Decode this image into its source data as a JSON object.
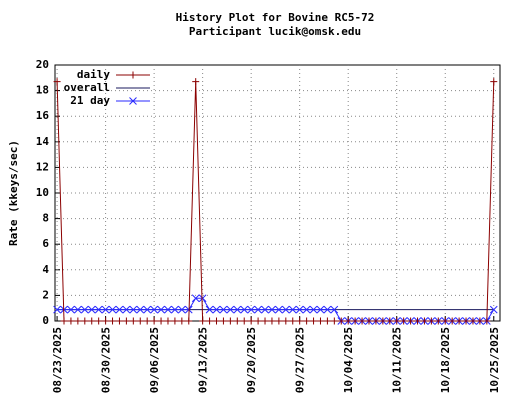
{
  "chart_data": {
    "type": "line",
    "title": "History Plot for Bovine RC5-72",
    "subtitle": "Participant lucik@omsk.edu",
    "y_label": "Rate (kkeys/sec)",
    "x": [
      0,
      1,
      2,
      3,
      4,
      5,
      6,
      7,
      8,
      9,
      10,
      11,
      12,
      13,
      14,
      15,
      16,
      17,
      18,
      19,
      20,
      21,
      22,
      23,
      24,
      25,
      26,
      27,
      28,
      29,
      30,
      31,
      32,
      33,
      34,
      35,
      36,
      37,
      38,
      39,
      40,
      41,
      42,
      43,
      44,
      45,
      46,
      47,
      48,
      49,
      50,
      51,
      52,
      53,
      54,
      55,
      56,
      57,
      58,
      59,
      60,
      61,
      62,
      63
    ],
    "series": [
      {
        "name": "daily",
        "color": "#8b0000",
        "marker": "+",
        "values": [
          18.7,
          0,
          0,
          0,
          0,
          0,
          0,
          0,
          0,
          0,
          0,
          0,
          0,
          0,
          0,
          0,
          0,
          0,
          0,
          0,
          18.7,
          0,
          0,
          0,
          0,
          0,
          0,
          0,
          0,
          0,
          0,
          0,
          0,
          0,
          0,
          0,
          0,
          0,
          0,
          0,
          0,
          0,
          0,
          0,
          0,
          0,
          0,
          0,
          0,
          0,
          0,
          0,
          0,
          0,
          0,
          0,
          0,
          0,
          0,
          0,
          0,
          0,
          0,
          18.7
        ]
      },
      {
        "name": "overall",
        "color": "#1a1a5e",
        "marker": "none",
        "values": [
          0.89,
          0.89,
          0.89,
          0.89,
          0.89,
          0.89,
          0.89,
          0.89,
          0.89,
          0.89,
          0.89,
          0.89,
          0.89,
          0.89,
          0.89,
          0.89,
          0.89,
          0.89,
          0.89,
          0.89,
          0.89,
          0.89,
          0.89,
          0.89,
          0.89,
          0.89,
          0.89,
          0.89,
          0.89,
          0.89,
          0.89,
          0.89,
          0.89,
          0.89,
          0.89,
          0.89,
          0.89,
          0.89,
          0.89,
          0.89,
          0.89,
          0.89,
          0.89,
          0.89,
          0.89,
          0.89,
          0.89,
          0.89,
          0.89,
          0.89,
          0.89,
          0.89,
          0.89,
          0.89,
          0.89,
          0.89,
          0.89,
          0.89,
          0.89,
          0.89,
          0.89,
          0.89,
          0.89,
          0.89
        ]
      },
      {
        "name": "21 day",
        "color": "#2a2aff",
        "marker": "x",
        "values": [
          0.89,
          0.89,
          0.89,
          0.89,
          0.89,
          0.89,
          0.89,
          0.89,
          0.89,
          0.89,
          0.89,
          0.89,
          0.89,
          0.89,
          0.89,
          0.89,
          0.89,
          0.89,
          0.89,
          0.89,
          1.78,
          1.78,
          0.89,
          0.89,
          0.89,
          0.89,
          0.89,
          0.89,
          0.89,
          0.89,
          0.89,
          0.89,
          0.89,
          0.89,
          0.89,
          0.89,
          0.89,
          0.89,
          0.89,
          0.89,
          0.89,
          0,
          0,
          0,
          0,
          0,
          0,
          0,
          0,
          0,
          0,
          0,
          0,
          0,
          0,
          0,
          0,
          0,
          0,
          0,
          0,
          0,
          0,
          0.89
        ]
      }
    ],
    "xlim": [
      -0.3,
      63.9
    ],
    "xticks": [
      {
        "value": 0,
        "label": "08/23/2025"
      },
      {
        "value": 7,
        "label": "08/30/2025"
      },
      {
        "value": 14,
        "label": "09/06/2025"
      },
      {
        "value": 21,
        "label": "09/13/2025"
      },
      {
        "value": 28,
        "label": "09/20/2025"
      },
      {
        "value": 35,
        "label": "09/27/2025"
      },
      {
        "value": 42,
        "label": "10/04/2025"
      },
      {
        "value": 49,
        "label": "10/11/2025"
      },
      {
        "value": 56,
        "label": "10/18/2025"
      },
      {
        "value": 63,
        "label": "10/25/2025"
      }
    ],
    "ylim": [
      0,
      20
    ],
    "yticks": [
      0,
      2,
      4,
      6,
      8,
      10,
      12,
      14,
      16,
      18,
      20
    ],
    "grid": true,
    "legend": "top-left"
  }
}
